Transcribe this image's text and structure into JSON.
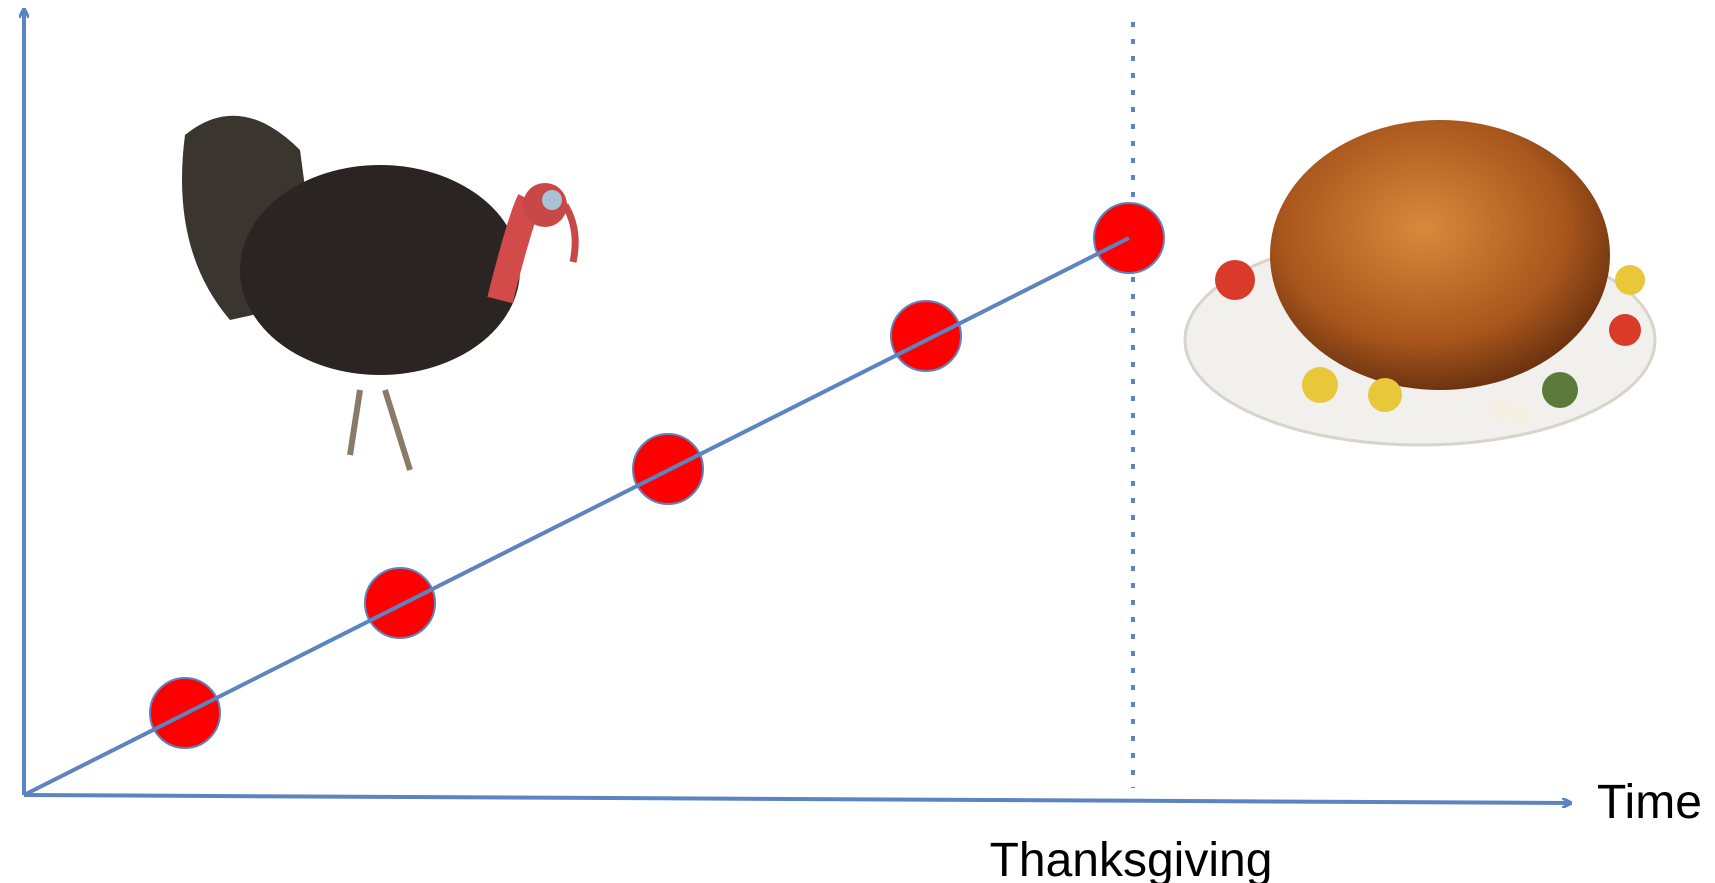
{
  "axis": {
    "x_label": "Time"
  },
  "event": {
    "label": "Thanksgiving"
  }
}
